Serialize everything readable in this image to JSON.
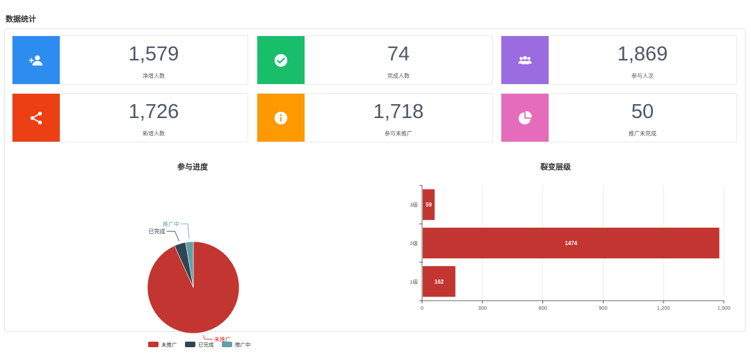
{
  "page": {
    "section_title": "数据统计"
  },
  "stats": [
    {
      "value": "1,579",
      "label": "净增人数",
      "color": "#2d8cf0",
      "icon": "user-plus-icon"
    },
    {
      "value": "74",
      "label": "完成人数",
      "color": "#19be6b",
      "icon": "check-circle-icon"
    },
    {
      "value": "1,869",
      "label": "参与人次",
      "color": "#9b6be0",
      "icon": "users-icon"
    },
    {
      "value": "1,726",
      "label": "新增人数",
      "color": "#ed3f14",
      "icon": "share-icon"
    },
    {
      "value": "1,718",
      "label": "参与未推广",
      "color": "#ff9900",
      "icon": "info-circle-icon"
    },
    {
      "value": "50",
      "label": "推广未完成",
      "color": "#e46cbb",
      "icon": "pie-chart-icon"
    }
  ],
  "chart_data": [
    {
      "type": "pie",
      "title": "参与进度",
      "slices": [
        {
          "name": "未推广",
          "value": 1718,
          "color": "#c23531"
        },
        {
          "name": "已完成",
          "value": 74,
          "color": "#2f4554"
        },
        {
          "name": "推广中",
          "value": 50,
          "color": "#61a0a8"
        }
      ],
      "legend": [
        "未推广",
        "已完成",
        "推广中"
      ],
      "legend_position": "bottom"
    },
    {
      "type": "bar",
      "orientation": "horizontal",
      "title": "裂变层级",
      "categories": [
        "1级",
        "2级",
        "3级"
      ],
      "values": [
        162,
        1474,
        59
      ],
      "color": "#c23531",
      "xlim": [
        0,
        1500
      ],
      "xticks": [
        "0",
        "300",
        "600",
        "900",
        "1,200",
        "1,500"
      ],
      "grid": true
    }
  ]
}
